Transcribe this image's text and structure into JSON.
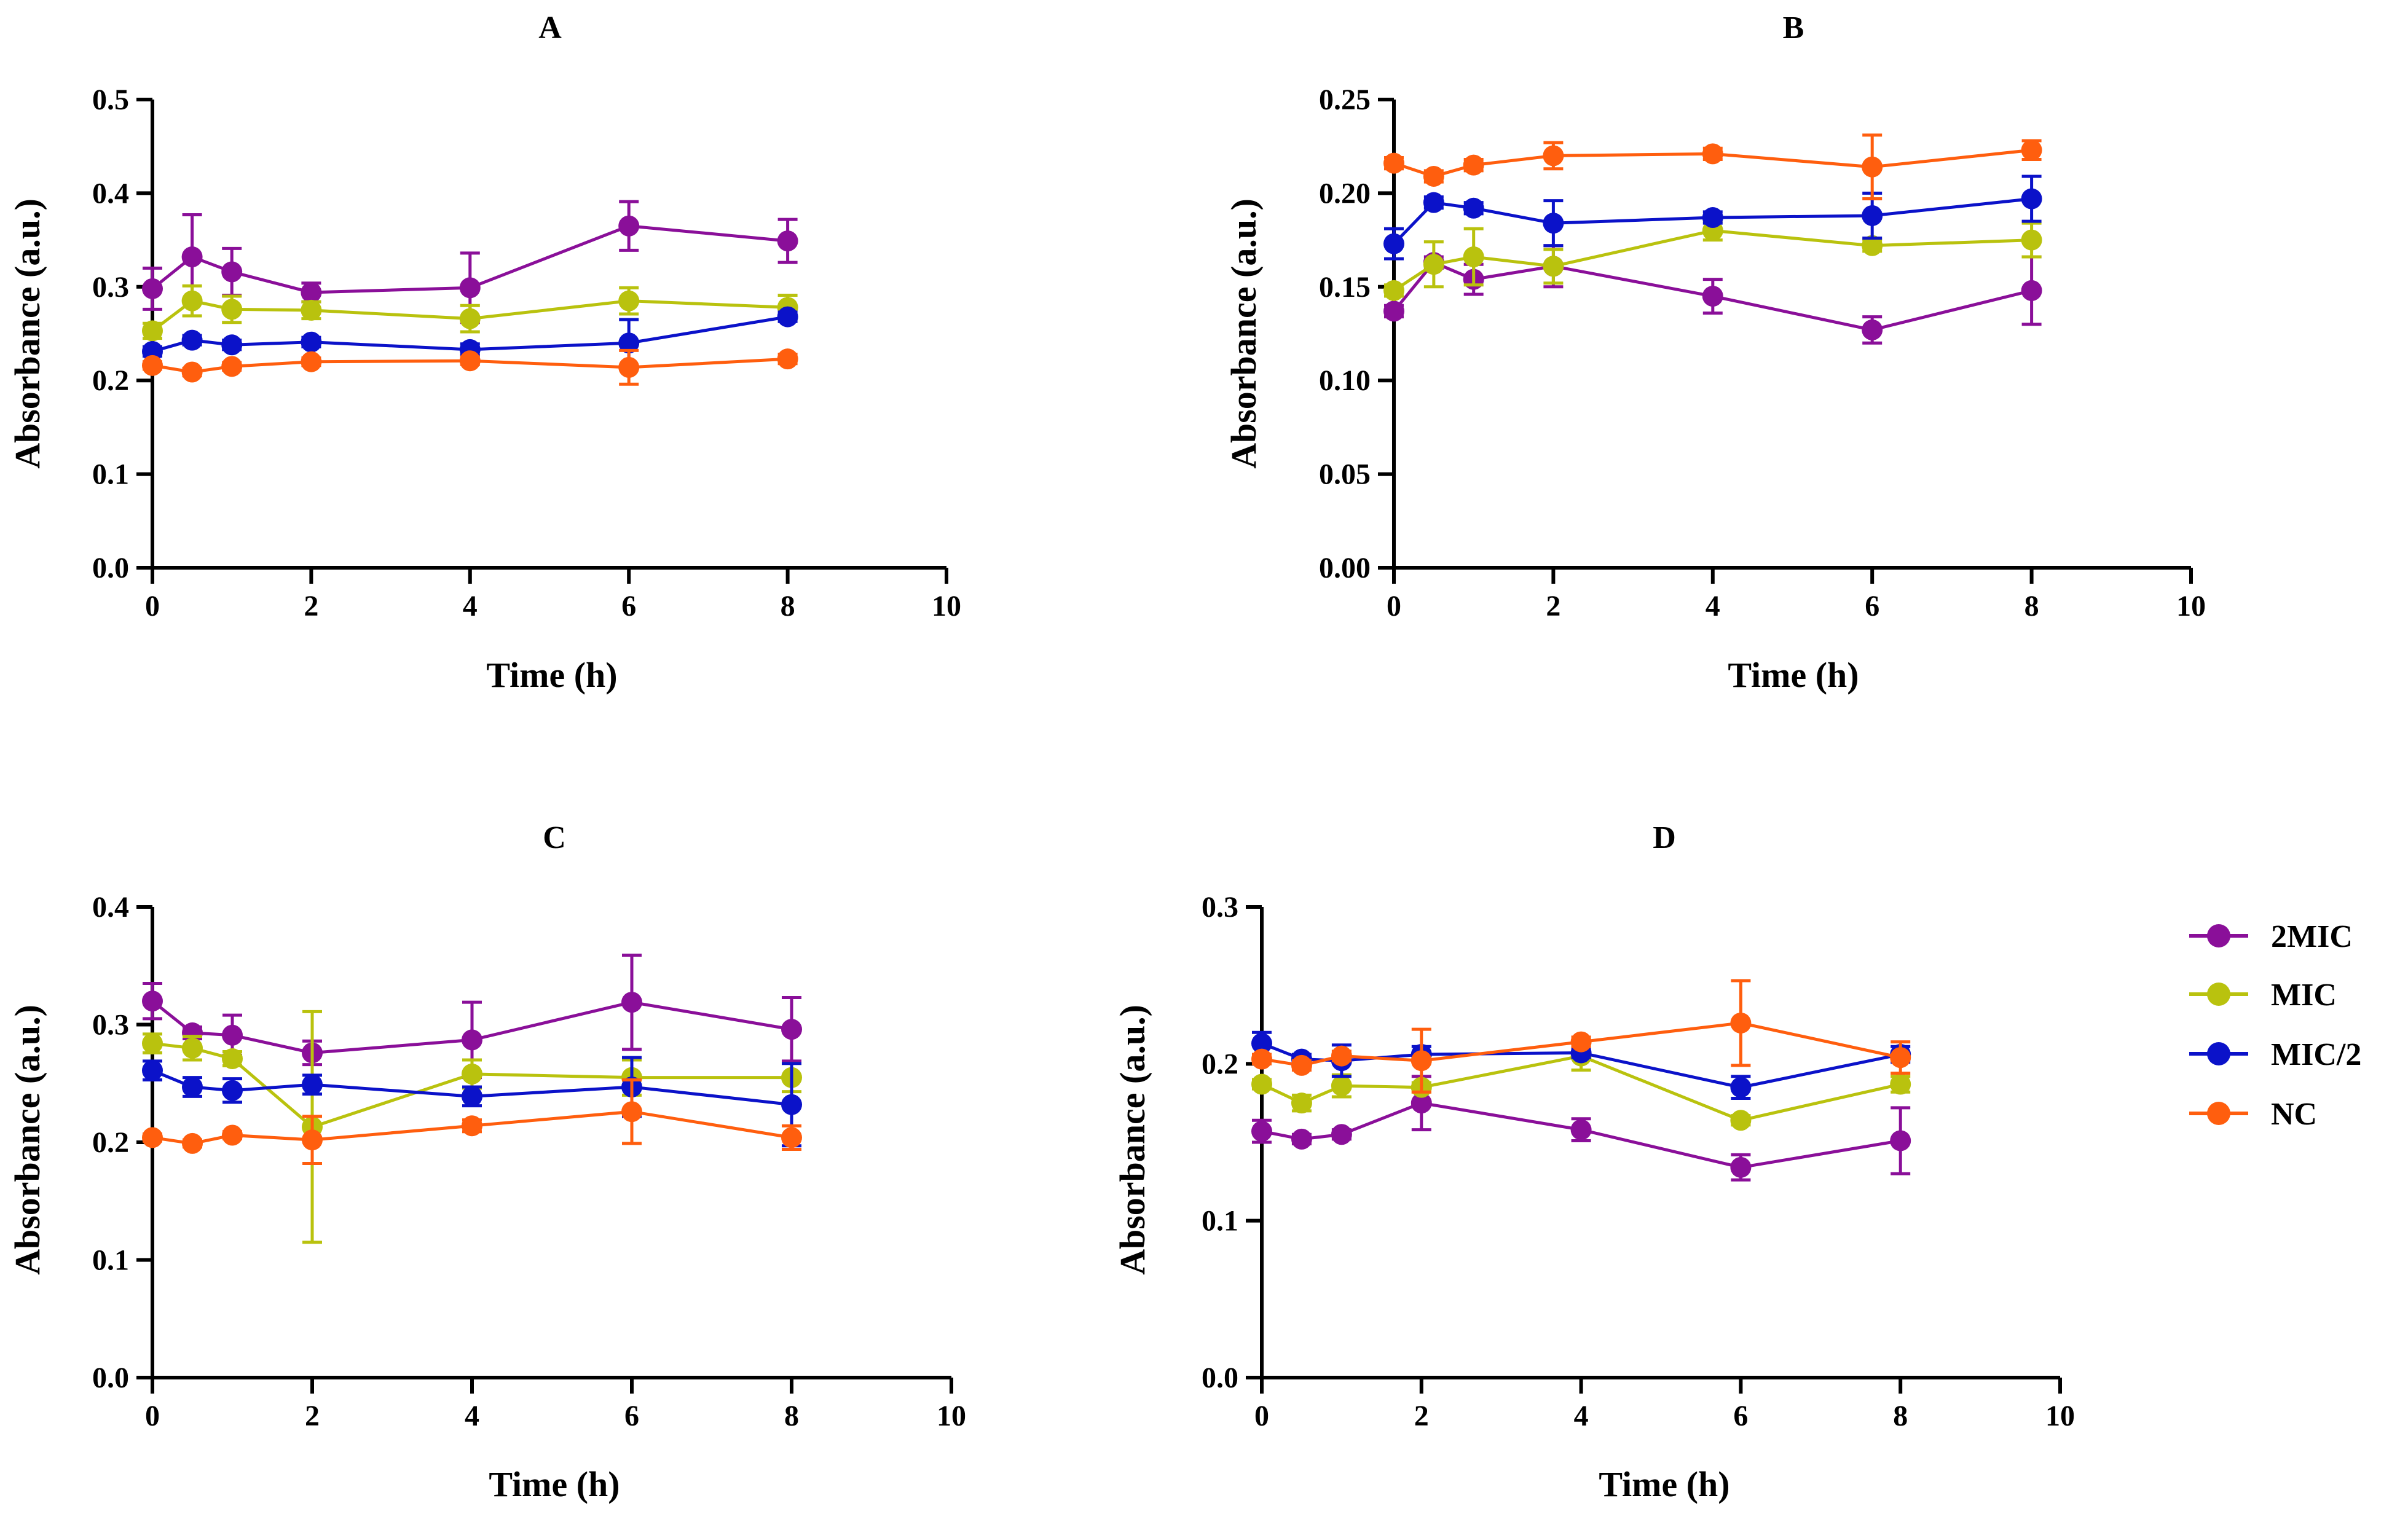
{
  "colors": {
    "2MIC": "#8a0f99",
    "MIC": "#b9c20e",
    "MIC/2": "#0b12c9",
    "NC": "#ff5e0e"
  },
  "legend": {
    "items": [
      "2MIC",
      "MIC",
      "MIC/2",
      "NC"
    ]
  },
  "chart_data": [
    {
      "type": "line",
      "title": "A",
      "xlabel": "Time (h)",
      "ylabel": "Absorbance (a.u.)",
      "xlim": [
        0,
        10
      ],
      "ylim": [
        0,
        0.5
      ],
      "xticks": [
        0,
        2,
        4,
        6,
        8,
        10
      ],
      "xtick_labels": [
        "0",
        "2",
        "4",
        "6",
        "8",
        "10"
      ],
      "yticks": [
        0,
        0.1,
        0.2,
        0.3,
        0.4,
        0.5
      ],
      "ytick_labels": [
        "0.0",
        "0.1",
        "0.2",
        "0.3",
        "0.4",
        "0.5"
      ],
      "x": [
        0,
        0.5,
        1,
        2,
        4,
        6,
        8
      ],
      "series": [
        {
          "name": "2MIC",
          "values": [
            0.298,
            0.332,
            0.316,
            0.294,
            0.299,
            0.365,
            0.349
          ],
          "errors": [
            0.022,
            0.045,
            0.025,
            0.01,
            0.037,
            0.026,
            0.023
          ]
        },
        {
          "name": "MIC",
          "values": [
            0.253,
            0.285,
            0.276,
            0.275,
            0.266,
            0.285,
            0.278
          ],
          "errors": [
            0.008,
            0.016,
            0.014,
            0.009,
            0.014,
            0.014,
            0.013
          ]
        },
        {
          "name": "MIC/2",
          "values": [
            0.231,
            0.243,
            0.238,
            0.241,
            0.233,
            0.24,
            0.268
          ],
          "errors": [
            0.005,
            0.005,
            0.005,
            0.005,
            0.006,
            0.025,
            0.005
          ]
        },
        {
          "name": "NC",
          "values": [
            0.216,
            0.209,
            0.215,
            0.22,
            0.221,
            0.214,
            0.223
          ],
          "errors": [
            0.004,
            0.004,
            0.004,
            0.004,
            0.004,
            0.018,
            0.005
          ]
        }
      ]
    },
    {
      "type": "line",
      "title": "B",
      "xlabel": "Time (h)",
      "ylabel": "Absorbance (a.u.)",
      "xlim": [
        0,
        10
      ],
      "ylim": [
        0,
        0.25
      ],
      "xticks": [
        0,
        2,
        4,
        6,
        8,
        10
      ],
      "xtick_labels": [
        "0",
        "2",
        "4",
        "6",
        "8",
        "10"
      ],
      "yticks": [
        0,
        0.05,
        0.1,
        0.15,
        0.2,
        0.25
      ],
      "ytick_labels": [
        "0.00",
        "0.05",
        "0.10",
        "0.15",
        "0.20",
        "0.25"
      ],
      "x": [
        0,
        0.5,
        1,
        2,
        4,
        6,
        8
      ],
      "series": [
        {
          "name": "2MIC",
          "values": [
            0.137,
            0.163,
            0.154,
            0.161,
            0.145,
            0.127,
            0.148
          ],
          "errors": [
            0.003,
            0.003,
            0.008,
            0.011,
            0.009,
            0.007,
            0.018
          ]
        },
        {
          "name": "MIC",
          "values": [
            0.148,
            0.162,
            0.166,
            0.161,
            0.18,
            0.172,
            0.175
          ],
          "errors": [
            0.003,
            0.012,
            0.015,
            0.009,
            0.005,
            0.003,
            0.009
          ]
        },
        {
          "name": "MIC/2",
          "values": [
            0.173,
            0.195,
            0.192,
            0.184,
            0.187,
            0.188,
            0.197
          ],
          "errors": [
            0.008,
            0.003,
            0.003,
            0.012,
            0.003,
            0.012,
            0.012
          ]
        },
        {
          "name": "NC",
          "values": [
            0.216,
            0.209,
            0.215,
            0.22,
            0.221,
            0.214,
            0.223
          ],
          "errors": [
            0.003,
            0.003,
            0.003,
            0.007,
            0.003,
            0.017,
            0.005
          ]
        }
      ]
    },
    {
      "type": "line",
      "title": "C",
      "xlabel": "Time (h)",
      "ylabel": "Absorbance (a.u.)",
      "xlim": [
        0,
        10
      ],
      "ylim": [
        0,
        0.4
      ],
      "xticks": [
        0,
        2,
        4,
        6,
        8,
        10
      ],
      "xtick_labels": [
        "0",
        "2",
        "4",
        "6",
        "8",
        "10"
      ],
      "yticks": [
        0,
        0.1,
        0.2,
        0.3,
        0.4
      ],
      "ytick_labels": [
        "0.0",
        "0.1",
        "0.2",
        "0.3",
        "0.4"
      ],
      "x": [
        0,
        0.5,
        1,
        2,
        4,
        6,
        8
      ],
      "series": [
        {
          "name": "2MIC",
          "values": [
            0.32,
            0.293,
            0.291,
            0.276,
            0.287,
            0.319,
            0.296
          ],
          "errors": [
            0.015,
            0.005,
            0.017,
            0.01,
            0.032,
            0.04,
            0.027
          ]
        },
        {
          "name": "MIC",
          "values": [
            0.284,
            0.28,
            0.271,
            0.213,
            0.258,
            0.255,
            0.255
          ],
          "errors": [
            0.008,
            0.01,
            0.006,
            0.098,
            0.012,
            0.015,
            0.012
          ]
        },
        {
          "name": "MIC/2",
          "values": [
            0.261,
            0.247,
            0.244,
            0.249,
            0.239,
            0.247,
            0.232
          ],
          "errors": [
            0.008,
            0.008,
            0.01,
            0.008,
            0.008,
            0.025,
            0.035
          ]
        },
        {
          "name": "NC",
          "values": [
            0.204,
            0.199,
            0.206,
            0.202,
            0.214,
            0.226,
            0.204
          ],
          "errors": [
            0.003,
            0.003,
            0.003,
            0.02,
            0.005,
            0.027,
            0.01
          ]
        }
      ]
    },
    {
      "type": "line",
      "title": "D",
      "xlabel": "Time (h)",
      "ylabel": "Absorbance (a.u.)",
      "xlim": [
        0,
        10
      ],
      "ylim": [
        0,
        0.3
      ],
      "xticks": [
        0,
        2,
        4,
        6,
        8,
        10
      ],
      "xtick_labels": [
        "0",
        "2",
        "4",
        "6",
        "8",
        "10"
      ],
      "yticks": [
        0,
        0.1,
        0.2,
        0.3
      ],
      "ytick_labels": [
        "0.0",
        "0.1",
        "0.2",
        "0.3"
      ],
      "x": [
        0,
        0.5,
        1,
        2,
        4,
        6,
        8
      ],
      "series": [
        {
          "name": "2MIC",
          "values": [
            0.157,
            0.152,
            0.155,
            0.175,
            0.158,
            0.134,
            0.151
          ],
          "errors": [
            0.007,
            0.003,
            0.003,
            0.017,
            0.007,
            0.008,
            0.021
          ]
        },
        {
          "name": "MIC",
          "values": [
            0.187,
            0.175,
            0.186,
            0.185,
            0.205,
            0.164,
            0.187
          ],
          "errors": [
            0.003,
            0.005,
            0.007,
            0.003,
            0.009,
            0.003,
            0.005
          ]
        },
        {
          "name": "MIC/2",
          "values": [
            0.213,
            0.203,
            0.202,
            0.206,
            0.207,
            0.185,
            0.206
          ],
          "errors": [
            0.007,
            0.003,
            0.01,
            0.005,
            0.003,
            0.007,
            0.005
          ]
        },
        {
          "name": "NC",
          "values": [
            0.203,
            0.199,
            0.205,
            0.202,
            0.214,
            0.226,
            0.204
          ],
          "errors": [
            0.003,
            0.003,
            0.003,
            0.02,
            0.003,
            0.027,
            0.01
          ]
        }
      ]
    }
  ]
}
